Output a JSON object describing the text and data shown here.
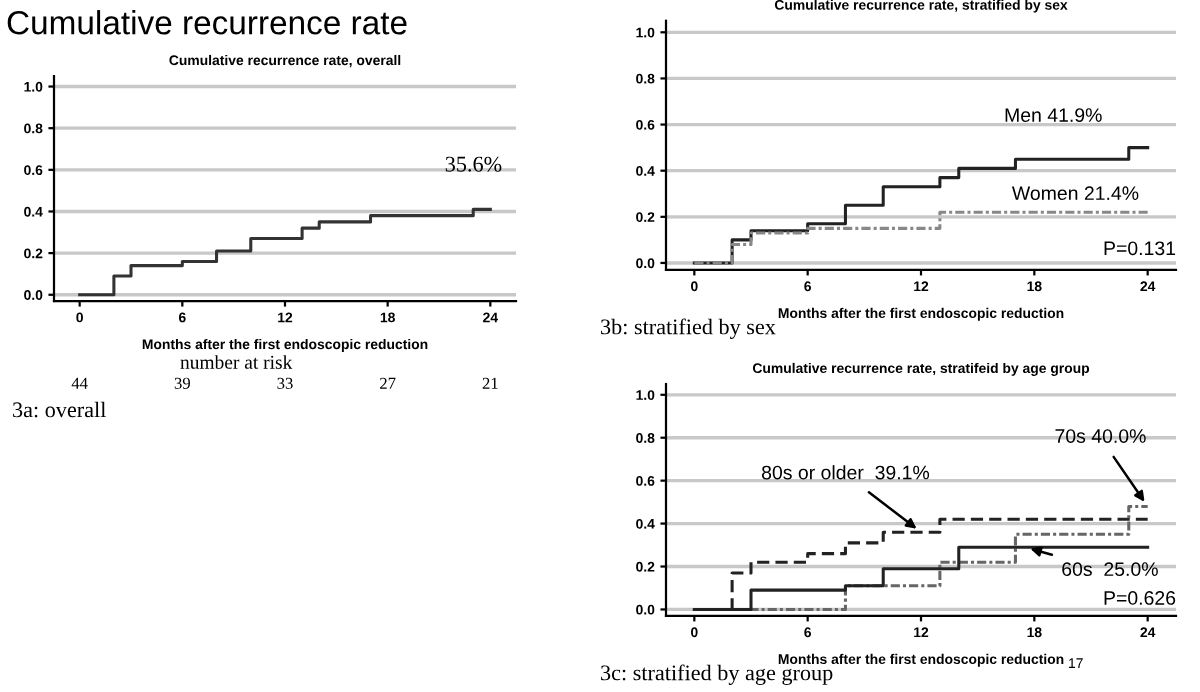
{
  "chart_data": [
    {
      "type": "step",
      "title": "Cumulative recurrence rate, overall",
      "xlabel": "Months after the first endoscopic reduction",
      "x": [
        0,
        2,
        3,
        6,
        8,
        10,
        13,
        14,
        17,
        23,
        24
      ],
      "series": [
        {
          "color": "#333333",
          "line_style": "solid",
          "values": [
            0,
            0.09,
            0.14,
            0.16,
            0.21,
            0.27,
            0.32,
            0.35,
            0.38,
            0.41,
            0.41
          ]
        }
      ],
      "xlim": [
        -1.5,
        25.5
      ],
      "xticks": [
        0,
        6,
        12,
        18,
        24
      ],
      "ylim": [
        -0.03,
        1.05
      ],
      "yticks": [
        {
          "value": 0,
          "label": "0.0"
        },
        {
          "value": 0.2,
          "label": "0.2"
        },
        {
          "value": 0.4,
          "label": "0.4"
        },
        {
          "value": 0.6,
          "label": "0.6"
        },
        {
          "value": 0.8,
          "label": "0.8"
        },
        {
          "value": 1,
          "label": "1.0"
        }
      ],
      "grid": "y",
      "marker": "none",
      "annotations": [
        "Cumulative recurrence rate",
        "35.6%",
        "number at risk",
        "44",
        "39",
        "33",
        "27",
        "21",
        "3a: overall"
      ]
    },
    {
      "type": "step",
      "title": "Cumulative recurrence rate, stratified by sex",
      "xlabel": "Months after the first endoscopic reduction",
      "series": [
        {
          "color": "#222222",
          "line_style": "solid",
          "x": [
            0,
            2,
            3,
            6,
            8,
            10,
            13,
            14,
            17,
            23,
            24
          ],
          "values": [
            0,
            0.1,
            0.14,
            0.17,
            0.25,
            0.33,
            0.37,
            0.41,
            0.45,
            0.5,
            0.5
          ]
        },
        {
          "color": "#888888",
          "line_style": "dotted",
          "x": [
            0,
            2,
            3,
            6,
            13,
            24
          ],
          "values": [
            0,
            0.08,
            0.13,
            0.15,
            0.22,
            0.22
          ]
        }
      ],
      "xlim": [
        -1.5,
        25.5
      ],
      "xticks": [
        0,
        6,
        12,
        18,
        24
      ],
      "ylim": [
        -0.03,
        1.05
      ],
      "yticks": [
        {
          "value": 0,
          "label": "0.0"
        },
        {
          "value": 0.2,
          "label": "0.2"
        },
        {
          "value": 0.4,
          "label": "0.4"
        },
        {
          "value": 0.6,
          "label": "0.6"
        },
        {
          "value": 0.8,
          "label": "0.8"
        },
        {
          "value": 1,
          "label": "1.0"
        }
      ],
      "grid": "y",
      "marker": "none",
      "annotations": [
        {
          "text": "Men 41.9%",
          "x": 19,
          "y": 0.45
        },
        {
          "text": "Women 21.4%",
          "x": 19,
          "y": 0.22
        },
        "P=0.131",
        "3b: stratified by sex"
      ]
    },
    {
      "type": "step",
      "title": "Cumulative recurrence rate, stratifeid by age group",
      "xlabel": "Months after the first endoscopic reduction",
      "series": [
        {
          "color": "#222222",
          "line_style": "dashed",
          "x": [
            0,
            2,
            3,
            6,
            8,
            10,
            13,
            24
          ],
          "values": [
            0,
            0.17,
            0.22,
            0.26,
            0.31,
            0.36,
            0.42,
            0.42
          ]
        },
        {
          "color": "#666666",
          "line_style": "dotted",
          "x": [
            0,
            8,
            13,
            17,
            23,
            24
          ],
          "values": [
            0,
            0.11,
            0.22,
            0.35,
            0.48,
            0.48
          ]
        },
        {
          "color": "#222222",
          "line_style": "solid",
          "x": [
            0,
            3,
            8,
            10,
            14,
            24
          ],
          "values": [
            0,
            0.09,
            0.11,
            0.19,
            0.29,
            0.29
          ]
        }
      ],
      "xlim": [
        -1.5,
        25.5
      ],
      "xticks": [
        0,
        6,
        12,
        18,
        24
      ],
      "ylim": [
        -0.03,
        1.05
      ],
      "yticks": [
        {
          "value": 0,
          "label": "0.0"
        },
        {
          "value": 0.2,
          "label": "0.2"
        },
        {
          "value": 0.4,
          "label": "0.4"
        },
        {
          "value": 0.6,
          "label": "0.6"
        },
        {
          "value": 0.8,
          "label": "0.8"
        },
        {
          "value": 1,
          "label": "1.0"
        }
      ],
      "grid": "y",
      "marker": "none",
      "annotations": [
        {
          "text": "80s or older  39.1%",
          "x": 12,
          "y": 0.36
        },
        {
          "text": "70s 40.0%",
          "x": 24,
          "y": 0.48
        },
        {
          "text": "60s  25.0%",
          "x": 17.5,
          "y": 0.29
        },
        "P=0.626",
        "3c: stratified by age group",
        "17"
      ]
    }
  ]
}
